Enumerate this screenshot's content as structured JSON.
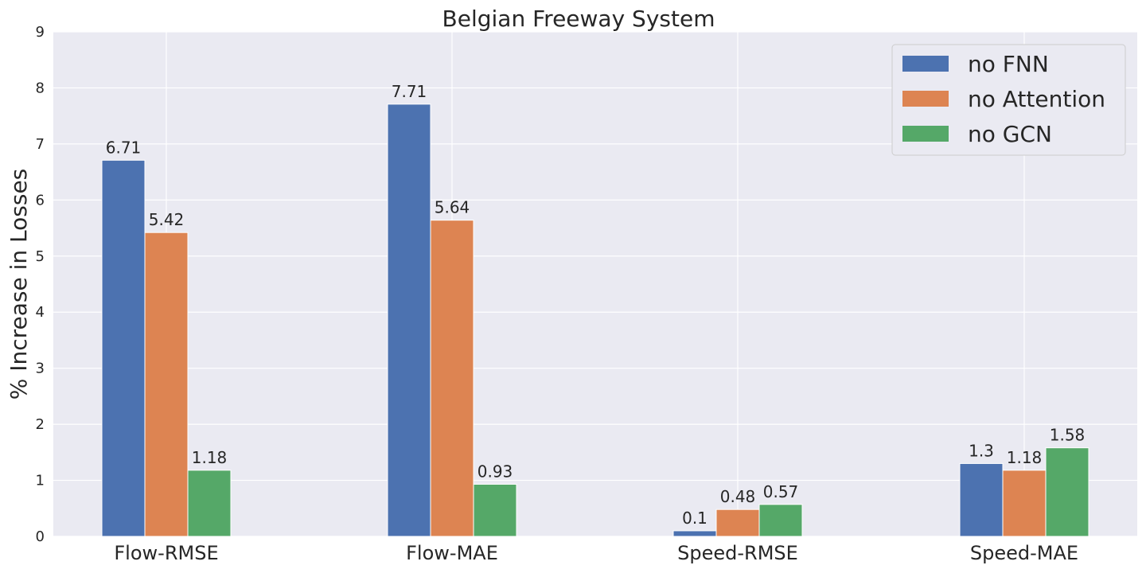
{
  "chart_data": {
    "type": "bar",
    "title": "Belgian Freeway System",
    "xlabel": "",
    "ylabel": "% Increase in Losses",
    "categories": [
      "Flow-RMSE",
      "Flow-MAE",
      "Speed-RMSE",
      "Speed-MAE"
    ],
    "ylim": [
      0,
      9
    ],
    "yticks": [
      "0",
      "1",
      "2",
      "3",
      "4",
      "5",
      "6",
      "7",
      "8",
      "9"
    ],
    "grid": true,
    "legend_position": "top-right",
    "series": [
      {
        "name": "no FNN",
        "color": "#4c72b0",
        "values": [
          6.71,
          7.71,
          0.1,
          1.3
        ],
        "labels": [
          "6.71",
          "7.71",
          "0.1",
          "1.3"
        ]
      },
      {
        "name": "no Attention",
        "color": "#dd8452",
        "values": [
          5.42,
          5.64,
          0.48,
          1.18
        ],
        "labels": [
          "5.42",
          "5.64",
          "0.48",
          "1.18"
        ]
      },
      {
        "name": "no GCN",
        "color": "#55a868",
        "values": [
          1.18,
          0.93,
          0.57,
          1.58
        ],
        "labels": [
          "1.18",
          "0.93",
          "0.57",
          "1.58"
        ]
      }
    ]
  }
}
